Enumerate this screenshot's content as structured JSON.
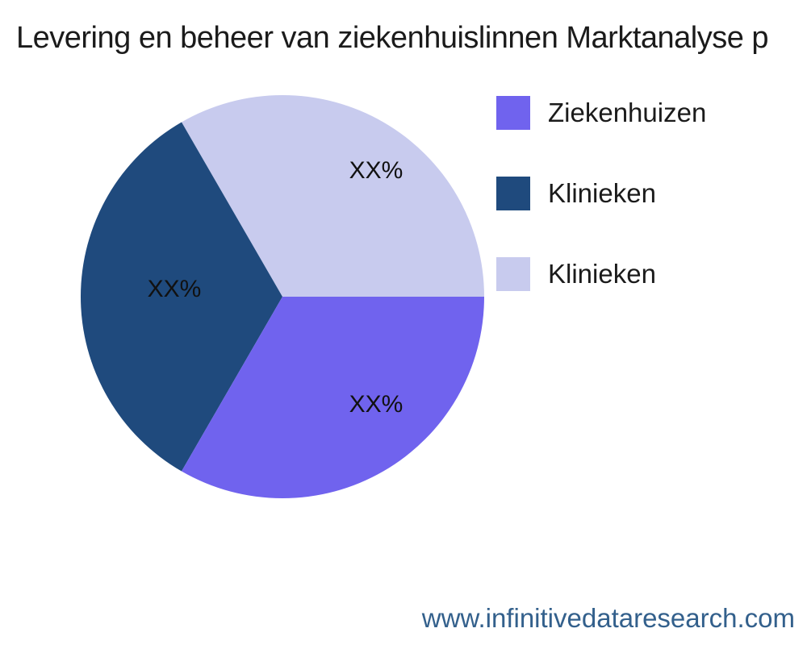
{
  "page": {
    "background_color": "#ffffff",
    "text_color": "#1b1b1b"
  },
  "chart_data": {
    "type": "pie",
    "title": "Levering en beheer van ziekenhuislinnen Marktanalyse p",
    "slices": [
      {
        "name": "Ziekenhuizen",
        "value": 33.33,
        "label": "XX%",
        "color": "#7063ee"
      },
      {
        "name": "Klinieken",
        "value": 33.33,
        "label": "XX%",
        "color": "#1f4a7d"
      },
      {
        "name": "Klinieken",
        "value": 33.33,
        "label": "XX%",
        "color": "#c8cbee"
      }
    ],
    "start_angle_deg": 0,
    "direction": "ccw",
    "draw_order": [
      2,
      1,
      0
    ],
    "legend_position": "right",
    "values_display": "placeholder XX% (actual percentages not shown)"
  },
  "footer": {
    "website": "www.infinitivedataresearch.com",
    "color": "#33608c"
  }
}
